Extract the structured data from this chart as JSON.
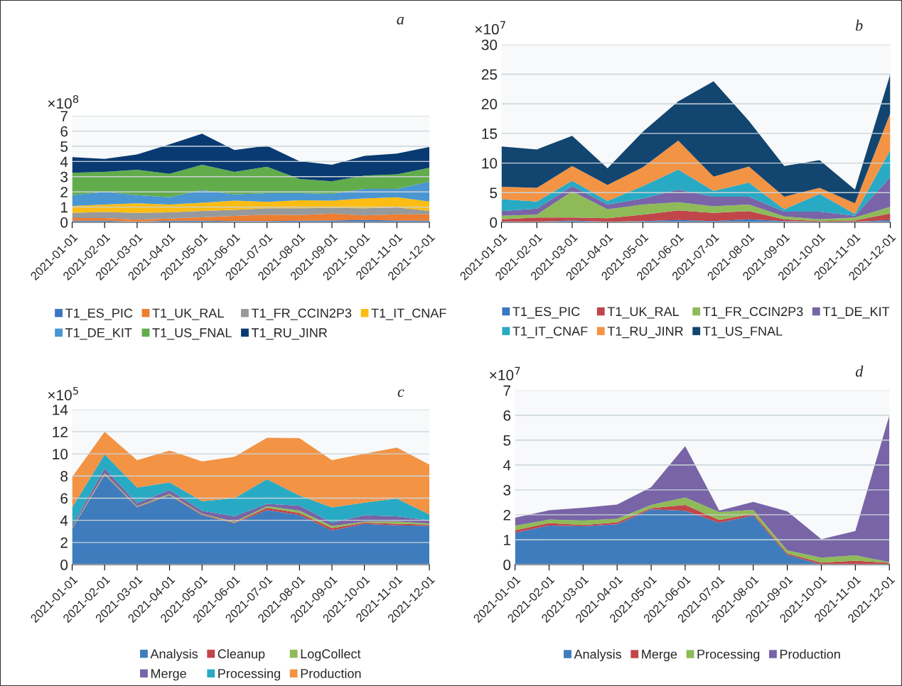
{
  "chart_data": [
    {
      "type": "area",
      "stacked": true,
      "title": "a",
      "ylabel": "×10$^{8}$",
      "ylim": [
        0,
        7
      ],
      "yticks": [
        0,
        1,
        2,
        3,
        4,
        5,
        6,
        7
      ],
      "grid": "y",
      "legend": "bottom",
      "categories": [
        "2021-01-01",
        "2021-02-01",
        "2021-03-01",
        "2021-04-01",
        "2021-05-01",
        "2021-06-01",
        "2021-07-01",
        "2021-08-01",
        "2021-09-01",
        "2021-10-01",
        "2021-11-01",
        "2021-12-01"
      ],
      "series": [
        {
          "name": "T1_ES_PIC",
          "color": "#3a76c0",
          "values": [
            0.1,
            0.1,
            0.05,
            0.1,
            0.1,
            0.08,
            0.08,
            0.1,
            0.12,
            0.15,
            0.12,
            0.1
          ]
        },
        {
          "name": "T1_UK_RAL",
          "color": "#ed7d31",
          "values": [
            0.18,
            0.18,
            0.12,
            0.15,
            0.23,
            0.34,
            0.42,
            0.38,
            0.45,
            0.3,
            0.41,
            0.43
          ]
        },
        {
          "name": "T1_FR_CCIN2P3",
          "color": "#969a9c",
          "values": [
            0.34,
            0.4,
            0.45,
            0.4,
            0.42,
            0.4,
            0.42,
            0.44,
            0.38,
            0.47,
            0.45,
            0.22
          ]
        },
        {
          "name": "T1_IT_CNAF",
          "color": "#fbbc14",
          "values": [
            0.45,
            0.49,
            0.63,
            0.52,
            0.54,
            0.6,
            0.42,
            0.53,
            0.47,
            0.65,
            0.67,
            0.62
          ]
        },
        {
          "name": "T1_DE_KIT",
          "color": "#4a96d2",
          "values": [
            0.72,
            0.83,
            0.54,
            0.48,
            0.83,
            0.42,
            0.58,
            0.47,
            0.45,
            0.63,
            0.55,
            1.3
          ]
        },
        {
          "name": "T1_US_FNAL",
          "color": "#62ac4c",
          "values": [
            1.47,
            1.32,
            1.67,
            1.54,
            1.67,
            1.48,
            1.74,
            0.93,
            0.83,
            0.87,
            0.96,
            0.92
          ]
        },
        {
          "name": "T1_RU_JINR",
          "color": "#0a3a72",
          "values": [
            1.03,
            0.85,
            1.0,
            1.94,
            2.04,
            1.44,
            1.38,
            1.17,
            1.09,
            1.3,
            1.36,
            1.37
          ]
        }
      ]
    },
    {
      "type": "area",
      "stacked": true,
      "title": "b",
      "ylabel": "×10$^{7}$",
      "ylim": [
        0,
        30
      ],
      "yticks": [
        0,
        5,
        10,
        15,
        20,
        25,
        30
      ],
      "grid": "y",
      "legend": "bottom",
      "categories": [
        "2021-01-01",
        "2021-02-01",
        "2021-03-01",
        "2021-04-01",
        "2021-05-01",
        "2021-06-01",
        "2021-07-01",
        "2021-08-01",
        "2021-09-01",
        "2021-10-01",
        "2021-11-01",
        "2021-12-01"
      ],
      "series": [
        {
          "name": "T1_ES_PIC",
          "color": "#3b79c0",
          "values": [
            0.1,
            0.1,
            0.3,
            0.1,
            0.2,
            0.4,
            0.2,
            0.5,
            0.2,
            0.1,
            0.1,
            0.4
          ]
        },
        {
          "name": "T1_UK_RAL",
          "color": "#c0464a",
          "values": [
            0.4,
            0.7,
            0.5,
            0.6,
            1.1,
            1.6,
            1.4,
            1.4,
            0.3,
            0.1,
            0.2,
            1.1
          ]
        },
        {
          "name": "T1_FR_CCIN2P3",
          "color": "#8ebb58",
          "values": [
            0.6,
            0.5,
            4.4,
            1.5,
            1.7,
            1.4,
            1.1,
            1.1,
            0.5,
            0.3,
            0.5,
            1.1
          ]
        },
        {
          "name": "T1_DE_KIT",
          "color": "#7864a6",
          "values": [
            0.8,
            1.0,
            0.9,
            0.8,
            1.0,
            2.1,
            1.6,
            1.3,
            0.8,
            1.3,
            0.3,
            5.0
          ]
        },
        {
          "name": "T1_IT_CNAF",
          "color": "#29aac4",
          "values": [
            2.0,
            1.2,
            0.9,
            0.6,
            2.1,
            3.4,
            1.0,
            2.4,
            0.4,
            3.0,
            0.3,
            4.6
          ]
        },
        {
          "name": "T1_RU_JINR",
          "color": "#f39344",
          "values": [
            2.1,
            2.3,
            2.5,
            2.7,
            3.2,
            4.9,
            2.4,
            2.7,
            2.1,
            1.0,
            1.8,
            6.2
          ]
        },
        {
          "name": "T1_US_FNAL",
          "color": "#124570",
          "values": [
            6.8,
            6.5,
            5.1,
            2.8,
            6.0,
            6.6,
            16.1,
            7.7,
            5.2,
            4.7,
            2.3,
            6.6
          ]
        }
      ]
    },
    {
      "type": "area",
      "stacked": true,
      "title": "c",
      "ylabel": "×10$^{5}$",
      "ylim": [
        0,
        14
      ],
      "yticks": [
        0,
        2,
        4,
        6,
        8,
        10,
        12,
        14
      ],
      "grid": "y",
      "legend": "bottom",
      "categories": [
        "2021-01-01",
        "2021-02-01",
        "2021-03-01",
        "2021-04-01",
        "2021-05-01",
        "2021-06-01",
        "2021-07-01",
        "2021-08-01",
        "2021-09-01",
        "2021-10-01",
        "2021-11-01",
        "2021-12-01"
      ],
      "series": [
        {
          "name": "Analysis",
          "color": "#3f7cbd",
          "values": [
            3.22,
            8.1,
            5.16,
            6.23,
            4.45,
            3.72,
            4.93,
            4.47,
            3.08,
            3.68,
            3.54,
            3.49
          ]
        },
        {
          "name": "Cleanup",
          "color": "#c0464a",
          "values": [
            0.05,
            0.05,
            0.05,
            0.05,
            0.07,
            0.07,
            0.2,
            0.2,
            0.2,
            0.1,
            0.15,
            0.12
          ]
        },
        {
          "name": "LogCollect",
          "color": "#8ebb58",
          "values": [
            0.05,
            0.1,
            0.07,
            0.1,
            0.07,
            0.07,
            0.15,
            0.2,
            0.2,
            0.1,
            0.2,
            0.1
          ]
        },
        {
          "name": "Merge",
          "color": "#7864a6",
          "values": [
            0.2,
            0.43,
            0.27,
            0.36,
            0.27,
            0.5,
            0.2,
            0.45,
            0.31,
            0.57,
            0.47,
            0.29
          ]
        },
        {
          "name": "Processing",
          "color": "#29aac4",
          "values": [
            1.62,
            1.27,
            1.41,
            0.68,
            0.87,
            1.64,
            2.24,
            0.91,
            1.37,
            1.14,
            1.6,
            0.52
          ]
        },
        {
          "name": "Production",
          "color": "#f39344",
          "values": [
            2.76,
            2.05,
            2.47,
            2.88,
            3.59,
            3.73,
            3.72,
            5.19,
            4.27,
            4.41,
            4.61,
            4.5
          ]
        }
      ]
    },
    {
      "type": "area",
      "stacked": true,
      "title": "d",
      "ylabel": "×10$^{7}$",
      "ylim": [
        0,
        7
      ],
      "yticks": [
        0,
        1,
        2,
        3,
        4,
        5,
        6,
        7
      ],
      "grid": "y",
      "legend": "bottom",
      "categories": [
        "2021-01-01",
        "2021-02-01",
        "2021-03-01",
        "2021-04-01",
        "2021-05-01",
        "2021-06-01",
        "2021-07-01",
        "2021-08-01",
        "2021-09-01",
        "2021-10-01",
        "2021-11-01",
        "2021-12-01"
      ],
      "series": [
        {
          "name": "Analysis",
          "color": "#3f7cbd",
          "values": [
            1.28,
            1.57,
            1.54,
            1.62,
            2.22,
            2.16,
            1.68,
            1.97,
            0.39,
            0,
            0,
            0
          ]
        },
        {
          "name": "Merge",
          "color": "#c0464a",
          "values": [
            0.1,
            0.1,
            0.05,
            0.08,
            0.05,
            0.24,
            0.11,
            0.07,
            0.06,
            0.08,
            0.16,
            0.07
          ]
        },
        {
          "name": "Processing",
          "color": "#8ebb58",
          "values": [
            0.18,
            0.14,
            0.18,
            0.14,
            0.13,
            0.3,
            0.32,
            0.16,
            0.12,
            0.2,
            0.21,
            0.03
          ]
        },
        {
          "name": "Production",
          "color": "#7864a6",
          "values": [
            0.32,
            0.37,
            0.51,
            0.57,
            0.71,
            2.06,
            0.06,
            0.32,
            1.57,
            0.74,
            0.98,
            5.89
          ]
        }
      ]
    }
  ]
}
